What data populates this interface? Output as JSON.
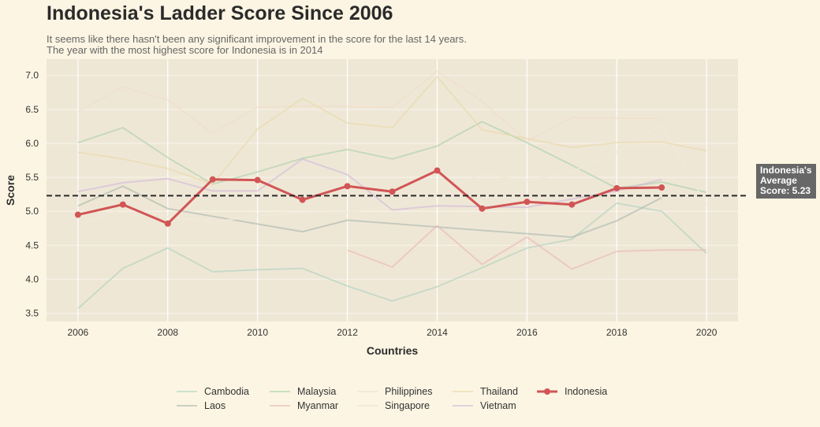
{
  "chart_data": {
    "type": "line",
    "title": "Indonesia's Ladder Score Since 2006",
    "subtitle": [
      "It seems like there hasn't been any significant improvement in the score for the last 14 years.",
      "The year with the most highest score for Indonesia is in 2014"
    ],
    "xlabel": "Countries",
    "ylabel": "Score",
    "xlim": [
      2005.3,
      2020.7
    ],
    "ylim": [
      3.38,
      7.24
    ],
    "xticks": [
      "2006",
      "2008",
      "2010",
      "2012",
      "2014",
      "2016",
      "2018",
      "2020"
    ],
    "yticks": [
      "3.5",
      "4.0",
      "4.5",
      "5.0",
      "5.5",
      "6.0",
      "6.5",
      "7.0"
    ],
    "grid": true,
    "legend_position": "bottom-center",
    "average": {
      "value": 5.23,
      "label": [
        "Indonesia's",
        "Average",
        "Score: 5.23"
      ]
    },
    "series": [
      {
        "name": "Cambodia",
        "color": "#a8cfbd",
        "opacity": 0.55,
        "highlight": false,
        "x": [
          2006,
          2007,
          2008,
          2009,
          2010,
          2011,
          2012,
          2013,
          2014,
          2015,
          2016,
          2017,
          2018,
          2019,
          2020
        ],
        "y": [
          3.57,
          4.16,
          4.46,
          4.11,
          4.14,
          4.16,
          3.9,
          3.68,
          3.89,
          4.17,
          4.46,
          4.59,
          5.12,
          5.0,
          4.38
        ]
      },
      {
        "name": "Laos",
        "color": "#a8b8ac",
        "opacity": 0.6,
        "highlight": false,
        "x": [
          2006,
          2007,
          2008,
          2011,
          2012,
          2017,
          2018,
          2019
        ],
        "y": [
          5.08,
          5.37,
          5.04,
          4.7,
          4.87,
          4.62,
          4.86,
          5.2
        ]
      },
      {
        "name": "Malaysia",
        "color": "#a8d0a8",
        "opacity": 0.6,
        "highlight": false,
        "x": [
          2006,
          2007,
          2008,
          2009,
          2010,
          2011,
          2012,
          2013,
          2014,
          2015,
          2016,
          2017,
          2018,
          2019,
          2020
        ],
        "y": [
          6.01,
          6.23,
          5.79,
          5.4,
          5.58,
          5.78,
          5.91,
          5.77,
          5.96,
          6.32,
          6.01,
          5.68,
          5.34,
          5.43,
          5.28
        ]
      },
      {
        "name": "Myanmar",
        "color": "#e8b8b0",
        "opacity": 0.6,
        "highlight": false,
        "x": [
          2012,
          2013,
          2014,
          2015,
          2016,
          2017,
          2018,
          2019,
          2020
        ],
        "y": [
          4.43,
          4.18,
          4.79,
          4.22,
          4.62,
          4.15,
          4.41,
          4.43,
          4.43
        ]
      },
      {
        "name": "Philippines",
        "color": "#f0e8d8",
        "opacity": 0.9,
        "highlight": false,
        "x": [
          2006,
          2007,
          2008,
          2009,
          2010,
          2011,
          2012,
          2013,
          2014,
          2015,
          2016,
          2017,
          2018,
          2019,
          2020
        ],
        "y": [
          4.78,
          5.05,
          4.92,
          4.84,
          4.94,
          4.98,
          4.99,
          5.07,
          5.28,
          5.55,
          5.45,
          5.58,
          5.87,
          6.27,
          5.09
        ]
      },
      {
        "name": "Singapore",
        "color": "#f0dcc8",
        "opacity": 0.55,
        "highlight": false,
        "x": [
          2006,
          2007,
          2008,
          2009,
          2010,
          2011,
          2012,
          2013,
          2014,
          2015,
          2016,
          2017,
          2018,
          2019
        ],
        "y": [
          6.47,
          6.83,
          6.64,
          6.15,
          6.53,
          6.55,
          6.54,
          6.53,
          7.06,
          6.62,
          6.03,
          6.38,
          6.37,
          6.37
        ]
      },
      {
        "name": "Thailand",
        "color": "#e8d8a8",
        "opacity": 0.6,
        "highlight": false,
        "x": [
          2006,
          2007,
          2008,
          2009,
          2010,
          2011,
          2012,
          2013,
          2014,
          2015,
          2016,
          2017,
          2018,
          2019,
          2020
        ],
        "y": [
          5.87,
          5.77,
          5.63,
          5.4,
          6.21,
          6.66,
          6.3,
          6.23,
          6.98,
          6.2,
          6.07,
          5.94,
          6.01,
          6.02,
          5.89
        ]
      },
      {
        "name": "Vietnam",
        "color": "#d0b8d8",
        "opacity": 0.6,
        "highlight": false,
        "x": [
          2006,
          2007,
          2008,
          2009,
          2010,
          2011,
          2012,
          2013,
          2014,
          2015,
          2016,
          2017,
          2018,
          2019
        ],
        "y": [
          5.29,
          5.42,
          5.48,
          5.3,
          5.3,
          5.77,
          5.54,
          5.02,
          5.08,
          5.07,
          5.06,
          5.18,
          5.3,
          5.47
        ]
      },
      {
        "name": "Indonesia",
        "color": "#d15555",
        "opacity": 1,
        "highlight": true,
        "x": [
          2006,
          2007,
          2008,
          2009,
          2010,
          2011,
          2012,
          2013,
          2014,
          2015,
          2016,
          2017,
          2018,
          2019
        ],
        "y": [
          4.95,
          5.1,
          4.82,
          5.47,
          5.46,
          5.17,
          5.37,
          5.29,
          5.6,
          5.04,
          5.14,
          5.1,
          5.34,
          5.35
        ]
      }
    ]
  }
}
